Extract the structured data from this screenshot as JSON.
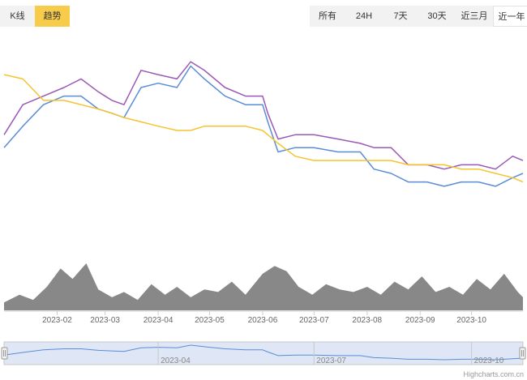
{
  "mode_tabs": [
    {
      "label": "K线",
      "active": false
    },
    {
      "label": "趋势",
      "active": true
    }
  ],
  "range_tabs": [
    {
      "label": "所有",
      "active": false
    },
    {
      "label": "24H",
      "active": false
    },
    {
      "label": "7天",
      "active": false
    },
    {
      "label": "30天",
      "active": false
    },
    {
      "label": "近三月",
      "active": false
    },
    {
      "label": "近一年",
      "active": true
    }
  ],
  "credits": "Highcharts.com.cn",
  "chart_data": {
    "type": "line",
    "x_unit": "date",
    "x_range": [
      "2023-01-01",
      "2023-10-31"
    ],
    "x_ticks": [
      "2023-02",
      "2023-03",
      "2023-04",
      "2023-05",
      "2023-06",
      "2023-07",
      "2023-08",
      "2023-09",
      "2023-10"
    ],
    "y_axis_labels": false,
    "y_range": [
      0,
      100
    ],
    "grid": false,
    "legend": "none",
    "series": [
      {
        "color": "#9b59b6",
        "dates": [
          "2023-01-01",
          "2023-01-12",
          "2023-01-24",
          "2023-02-05",
          "2023-02-15",
          "2023-02-25",
          "2023-03-05",
          "2023-03-12",
          "2023-03-22",
          "2023-04-01",
          "2023-04-12",
          "2023-04-20",
          "2023-04-28",
          "2023-05-10",
          "2023-05-22",
          "2023-06-01",
          "2023-06-04",
          "2023-06-10",
          "2023-06-20",
          "2023-07-01",
          "2023-07-15",
          "2023-07-28",
          "2023-08-05",
          "2023-08-15",
          "2023-08-25",
          "2023-09-05",
          "2023-09-15",
          "2023-09-25",
          "2023-10-05",
          "2023-10-15",
          "2023-10-25",
          "2023-10-31"
        ],
        "values": [
          58,
          72,
          76,
          80,
          84,
          78,
          74,
          72,
          88,
          86,
          84,
          92,
          88,
          80,
          76,
          76,
          68,
          56,
          58,
          58,
          56,
          54,
          52,
          52,
          44,
          44,
          42,
          44,
          44,
          42,
          48,
          46
        ]
      },
      {
        "color": "#5b8dd6",
        "dates": [
          "2023-01-01",
          "2023-01-12",
          "2023-01-24",
          "2023-02-05",
          "2023-02-15",
          "2023-02-25",
          "2023-03-05",
          "2023-03-12",
          "2023-03-22",
          "2023-04-01",
          "2023-04-12",
          "2023-04-20",
          "2023-04-28",
          "2023-05-10",
          "2023-05-22",
          "2023-06-01",
          "2023-06-04",
          "2023-06-10",
          "2023-06-20",
          "2023-07-01",
          "2023-07-15",
          "2023-07-28",
          "2023-08-05",
          "2023-08-15",
          "2023-08-25",
          "2023-09-05",
          "2023-09-15",
          "2023-09-25",
          "2023-10-05",
          "2023-10-15",
          "2023-10-25",
          "2023-10-31"
        ],
        "values": [
          52,
          62,
          72,
          76,
          76,
          70,
          68,
          66,
          80,
          82,
          80,
          90,
          84,
          76,
          72,
          72,
          64,
          50,
          52,
          52,
          50,
          50,
          42,
          40,
          36,
          36,
          34,
          36,
          36,
          34,
          38,
          40
        ]
      },
      {
        "color": "#f4c430",
        "dates": [
          "2023-01-01",
          "2023-01-12",
          "2023-01-24",
          "2023-02-05",
          "2023-02-15",
          "2023-02-25",
          "2023-03-05",
          "2023-03-12",
          "2023-03-22",
          "2023-04-01",
          "2023-04-12",
          "2023-04-20",
          "2023-04-28",
          "2023-05-10",
          "2023-05-22",
          "2023-06-01",
          "2023-06-04",
          "2023-06-10",
          "2023-06-20",
          "2023-07-01",
          "2023-07-15",
          "2023-07-28",
          "2023-08-05",
          "2023-08-15",
          "2023-08-25",
          "2023-09-05",
          "2023-09-15",
          "2023-09-25",
          "2023-10-05",
          "2023-10-15",
          "2023-10-25",
          "2023-10-31"
        ],
        "values": [
          86,
          84,
          74,
          74,
          72,
          70,
          68,
          66,
          64,
          62,
          60,
          60,
          62,
          62,
          62,
          60,
          58,
          54,
          48,
          46,
          46,
          46,
          46,
          46,
          44,
          44,
          44,
          42,
          42,
          40,
          38,
          36
        ]
      }
    ],
    "volume": {
      "color": "#888888",
      "dates": [
        "2023-01-01",
        "2023-01-10",
        "2023-01-18",
        "2023-01-26",
        "2023-02-03",
        "2023-02-10",
        "2023-02-18",
        "2023-02-25",
        "2023-03-05",
        "2023-03-12",
        "2023-03-20",
        "2023-03-28",
        "2023-04-05",
        "2023-04-12",
        "2023-04-20",
        "2023-04-28",
        "2023-05-06",
        "2023-05-14",
        "2023-05-22",
        "2023-06-01",
        "2023-06-08",
        "2023-06-15",
        "2023-06-22",
        "2023-06-30",
        "2023-07-08",
        "2023-07-16",
        "2023-07-24",
        "2023-08-01",
        "2023-08-09",
        "2023-08-17",
        "2023-08-25",
        "2023-09-02",
        "2023-09-10",
        "2023-09-18",
        "2023-09-26",
        "2023-10-04",
        "2023-10-12",
        "2023-10-20",
        "2023-10-28",
        "2023-10-31"
      ],
      "values": [
        15,
        30,
        20,
        45,
        80,
        60,
        90,
        40,
        25,
        35,
        20,
        50,
        30,
        45,
        25,
        40,
        35,
        55,
        30,
        70,
        85,
        75,
        45,
        30,
        50,
        40,
        35,
        45,
        30,
        55,
        40,
        65,
        35,
        45,
        30,
        60,
        40,
        70,
        35,
        25
      ]
    },
    "navigator": {
      "color": "#5b8dd6",
      "labels": [
        "2023-04",
        "2023-07",
        "2023-10"
      ]
    }
  }
}
